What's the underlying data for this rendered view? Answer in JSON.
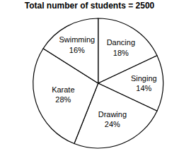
{
  "chart_data": {
    "type": "pie",
    "title": "Total number of students = 2500",
    "categories": [
      "Dancing",
      "Singing",
      "Drawing",
      "Karate",
      "Swimming"
    ],
    "values": [
      18,
      14,
      24,
      28,
      16
    ],
    "value_labels": [
      "18%",
      "14%",
      "24%",
      "28%",
      "16%"
    ],
    "data_labels": true,
    "color": "#ffffff"
  }
}
